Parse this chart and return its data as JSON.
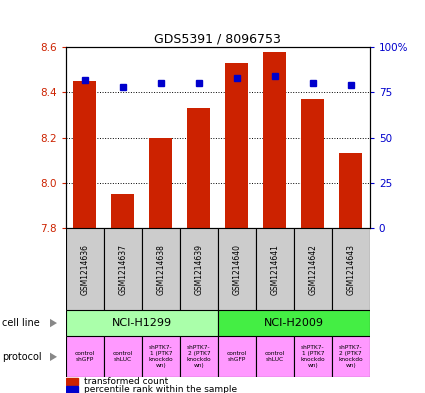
{
  "title": "GDS5391 / 8096753",
  "samples": [
    "GSM1214636",
    "GSM1214637",
    "GSM1214638",
    "GSM1214639",
    "GSM1214640",
    "GSM1214641",
    "GSM1214642",
    "GSM1214643"
  ],
  "bar_values": [
    8.45,
    7.95,
    8.2,
    8.33,
    8.53,
    8.58,
    8.37,
    8.13
  ],
  "percentile_values": [
    82,
    78,
    80,
    80,
    83,
    84,
    80,
    79
  ],
  "y_min": 7.8,
  "y_max": 8.6,
  "y_ticks": [
    7.8,
    8.0,
    8.2,
    8.4,
    8.6
  ],
  "y2_ticks": [
    0,
    25,
    50,
    75,
    100
  ],
  "bar_color": "#cc2200",
  "dot_color": "#0000cc",
  "cell_line_groups": [
    {
      "label": "NCI-H1299",
      "start": 0,
      "end": 3,
      "color": "#aaffaa"
    },
    {
      "label": "NCI-H2009",
      "start": 4,
      "end": 7,
      "color": "#44ee44"
    }
  ],
  "protocols": [
    {
      "label": "control\nshGFP",
      "color": "#ff99ff"
    },
    {
      "label": "control\nshLUC",
      "color": "#ff99ff"
    },
    {
      "label": "shPTK7-\n1 (PTK7\nknockdo\nwn)",
      "color": "#ff99ff"
    },
    {
      "label": "shPTK7-\n2 (PTK7\nknockdo\nwn)",
      "color": "#ff99ff"
    },
    {
      "label": "control\nshGFP",
      "color": "#ff99ff"
    },
    {
      "label": "control\nshLUC",
      "color": "#ff99ff"
    },
    {
      "label": "shPTK7-\n1 (PTK7\nknockdo\nwn)",
      "color": "#ff99ff"
    },
    {
      "label": "shPTK7-\n2 (PTK7\nknockdo\nwn)",
      "color": "#ff99ff"
    }
  ],
  "legend_items": [
    {
      "label": "transformed count",
      "color": "#cc2200"
    },
    {
      "label": "percentile rank within the sample",
      "color": "#0000cc"
    }
  ],
  "sample_box_color": "#cccccc",
  "tick_label_color_left": "#cc2200",
  "tick_label_color_right": "#0000cc",
  "left_label_color": "#555555"
}
